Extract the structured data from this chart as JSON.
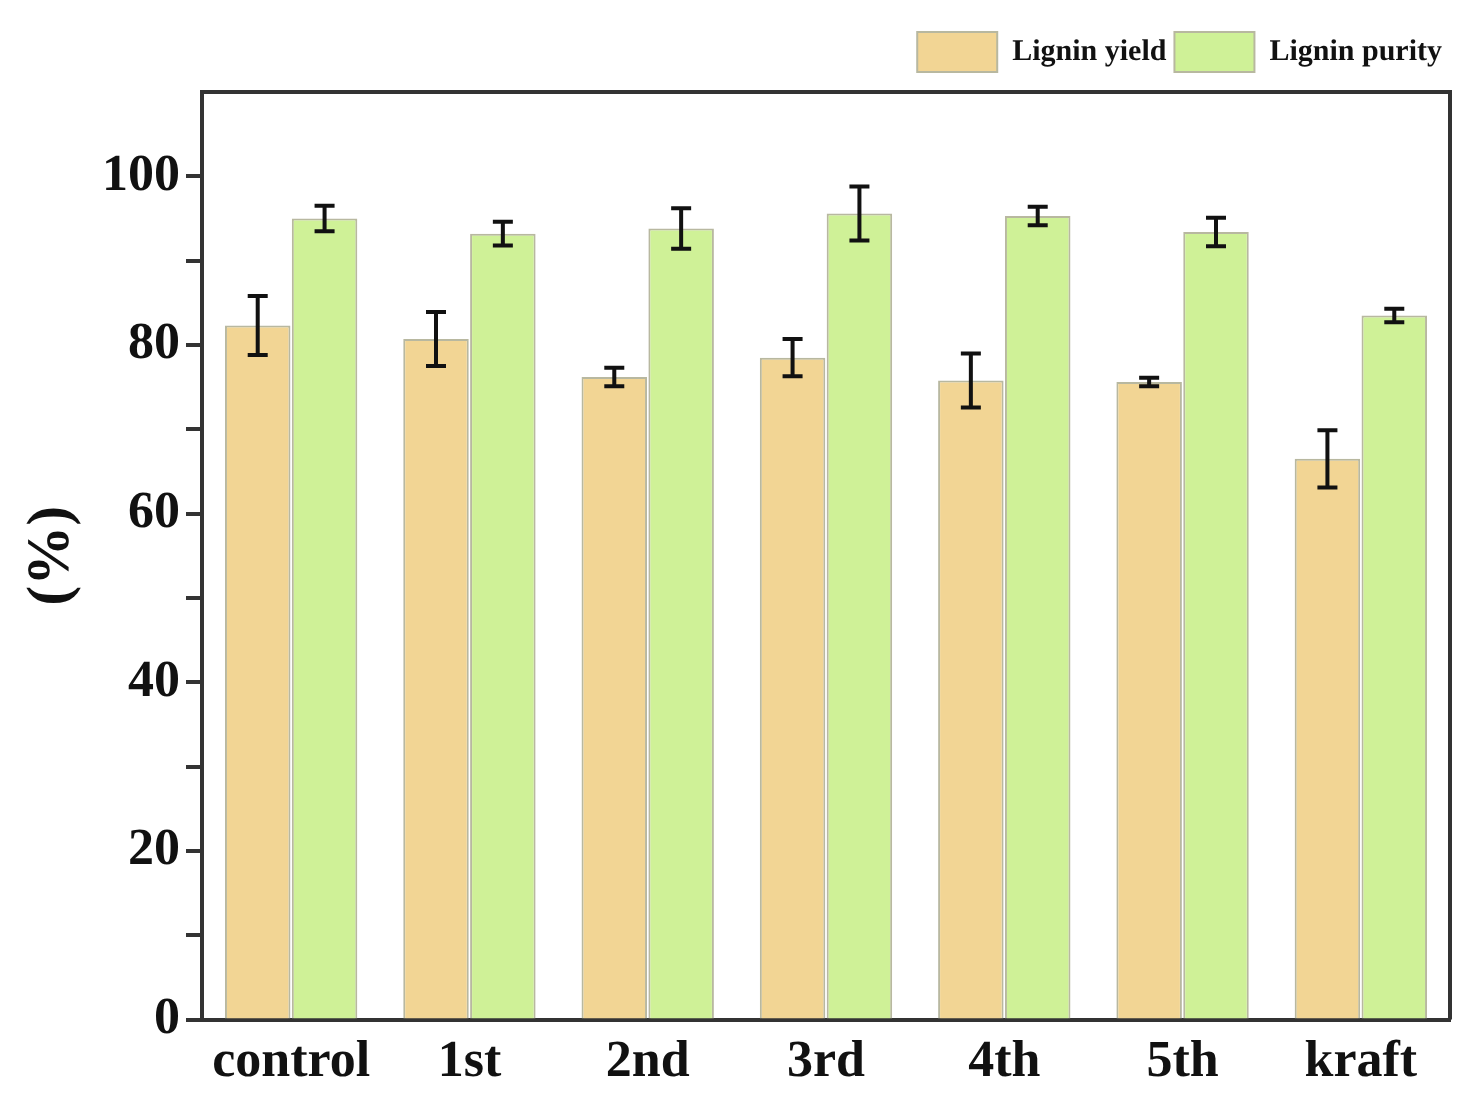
{
  "chart_data": {
    "type": "bar",
    "ylabel": "(%)",
    "categories": [
      "control",
      "1st",
      "2nd",
      "3rd",
      "4th",
      "5th",
      "kraft"
    ],
    "series": [
      {
        "name": "Lignin yield",
        "color": "#f2d594",
        "values": [
          82.3,
          80.7,
          76.2,
          78.5,
          75.8,
          75.6,
          66.5
        ],
        "errors": [
          3.5,
          3.2,
          1.1,
          2.2,
          3.2,
          0.5,
          3.4
        ]
      },
      {
        "name": "Lignin purity",
        "color": "#cff197",
        "values": [
          95.0,
          93.2,
          93.8,
          95.6,
          95.3,
          93.4,
          83.5
        ],
        "errors": [
          1.5,
          1.4,
          2.4,
          3.2,
          1.1,
          1.7,
          0.8
        ]
      }
    ],
    "ylim": [
      0,
      110
    ],
    "yticks": [
      0,
      {
        "value": 10,
        "label": null
      },
      20,
      {
        "value": 30,
        "label": null
      },
      40,
      {
        "value": 50,
        "label": null
      },
      60,
      {
        "value": 70,
        "label": null
      },
      80,
      {
        "value": 90,
        "label": null
      },
      100
    ],
    "grid": false,
    "legend": "top right"
  }
}
